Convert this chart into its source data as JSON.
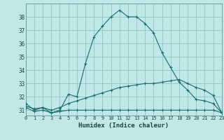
{
  "xlabel": "Humidex (Indice chaleur)",
  "background_color": "#c0e8e8",
  "grid_color": "#98c8c8",
  "line_color": "#1a6b6b",
  "x_values": [
    0,
    1,
    2,
    3,
    4,
    5,
    6,
    7,
    8,
    9,
    10,
    11,
    12,
    13,
    14,
    15,
    16,
    17,
    18,
    19,
    20,
    21,
    22,
    23
  ],
  "line1": [
    31.5,
    31.0,
    31.2,
    30.8,
    31.0,
    32.2,
    32.0,
    34.5,
    36.5,
    37.3,
    38.0,
    38.5,
    38.0,
    38.0,
    37.5,
    36.8,
    35.3,
    34.2,
    33.1,
    32.5,
    31.8,
    31.7,
    31.5,
    30.8
  ],
  "line2": [
    31.3,
    31.1,
    31.2,
    31.0,
    31.2,
    31.5,
    31.7,
    31.9,
    32.1,
    32.3,
    32.5,
    32.7,
    32.8,
    32.9,
    33.0,
    33.0,
    33.1,
    33.2,
    33.3,
    33.0,
    32.7,
    32.5,
    32.1,
    30.8
  ],
  "line3": [
    31.2,
    30.9,
    31.0,
    30.8,
    30.9,
    31.0,
    31.0,
    31.0,
    31.0,
    31.0,
    31.0,
    31.0,
    31.0,
    31.0,
    31.0,
    31.0,
    31.0,
    31.0,
    31.0,
    31.0,
    31.0,
    31.0,
    31.0,
    30.8
  ],
  "ylim": [
    30.6,
    39.0
  ],
  "xlim": [
    0,
    23
  ],
  "yticks": [
    31,
    32,
    33,
    34,
    35,
    36,
    37,
    38
  ],
  "xticks": [
    0,
    1,
    2,
    3,
    4,
    5,
    6,
    7,
    8,
    9,
    10,
    11,
    12,
    13,
    14,
    15,
    16,
    17,
    18,
    19,
    20,
    21,
    22,
    23
  ]
}
